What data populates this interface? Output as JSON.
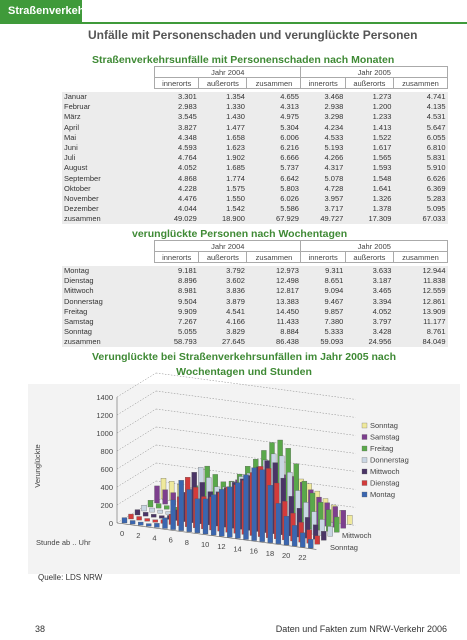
{
  "header": {
    "section": "Straßenverkehr",
    "title": "Unfälle mit Personenschaden und verunglückte Personen"
  },
  "table1": {
    "title": "Straßenverkehrsunfälle mit Personenschaden nach Monaten",
    "year_headers": [
      "Jahr 2004",
      "Jahr 2005"
    ],
    "col_headers": [
      "innerorts",
      "außerorts",
      "zusammen",
      "innerorts",
      "außerorts",
      "zusammen"
    ],
    "rows": [
      [
        "Januar",
        "3.301",
        "1.354",
        "4.655",
        "3.468",
        "1.273",
        "4.741"
      ],
      [
        "Februar",
        "2.983",
        "1.330",
        "4.313",
        "2.938",
        "1.200",
        "4.135"
      ],
      [
        "März",
        "3.545",
        "1.430",
        "4.975",
        "3.298",
        "1.233",
        "4.531"
      ],
      [
        "April",
        "3.827",
        "1.477",
        "5.304",
        "4.234",
        "1.413",
        "5.647"
      ],
      [
        "Mai",
        "4.348",
        "1.658",
        "6.006",
        "4.533",
        "1.522",
        "6.055"
      ],
      [
        "Juni",
        "4.593",
        "1.623",
        "6.216",
        "5.193",
        "1.617",
        "6.810"
      ],
      [
        "Juli",
        "4.764",
        "1.902",
        "6.666",
        "4.266",
        "1.565",
        "5.831"
      ],
      [
        "August",
        "4.052",
        "1.685",
        "5.737",
        "4.317",
        "1.593",
        "5.910"
      ],
      [
        "September",
        "4.868",
        "1.774",
        "6.642",
        "5.078",
        "1.548",
        "6.626"
      ],
      [
        "Oktober",
        "4.228",
        "1.575",
        "5.803",
        "4.728",
        "1.641",
        "6.369"
      ],
      [
        "November",
        "4.476",
        "1.550",
        "6.026",
        "3.957",
        "1.326",
        "5.283"
      ],
      [
        "Dezember",
        "4.044",
        "1.542",
        "5.586",
        "3.717",
        "1.378",
        "5.095"
      ],
      [
        "zusammen",
        "49.029",
        "18.900",
        "67.929",
        "49.727",
        "17.309",
        "67.033"
      ]
    ]
  },
  "table2": {
    "title": "verunglückte Personen nach Wochentagen",
    "year_headers": [
      "Jahr 2004",
      "Jahr 2005"
    ],
    "col_headers": [
      "innerorts",
      "außerorts",
      "zusammen",
      "innerorts",
      "außerorts",
      "zusammen"
    ],
    "rows": [
      [
        "Montag",
        "9.181",
        "3.792",
        "12.973",
        "9.311",
        "3.633",
        "12.944"
      ],
      [
        "Dienstag",
        "8.896",
        "3.602",
        "12.498",
        "8.651",
        "3.187",
        "11.838"
      ],
      [
        "Mittwoch",
        "8.981",
        "3.836",
        "12.817",
        "9.094",
        "3.465",
        "12.559"
      ],
      [
        "Donnerstag",
        "9.504",
        "3.879",
        "13.383",
        "9.467",
        "3.394",
        "12.861"
      ],
      [
        "Freitag",
        "9.909",
        "4.541",
        "14.450",
        "9.857",
        "4.052",
        "13.909"
      ],
      [
        "Samstag",
        "7.267",
        "4.166",
        "11.433",
        "7.380",
        "3.797",
        "11.177"
      ],
      [
        "Sonntag",
        "5.055",
        "3.829",
        "8.884",
        "5.333",
        "3.428",
        "8.761"
      ],
      [
        "zusammen",
        "58.793",
        "27.645",
        "86.438",
        "59.093",
        "24.956",
        "84.049"
      ]
    ]
  },
  "chart_data": {
    "type": "bar3d",
    "title": [
      "Verunglückte bei Straßenverkehrsunfällen im Jahr 2005 nach",
      "Wochentagen und Stunden"
    ],
    "y_label": "Verunglückte",
    "x_label": "Stunde ab .. Uhr",
    "x": [
      0,
      1,
      2,
      3,
      4,
      5,
      6,
      7,
      8,
      9,
      10,
      11,
      12,
      13,
      14,
      15,
      16,
      17,
      18,
      19,
      20,
      21,
      22,
      23
    ],
    "xticks": [
      0,
      2,
      4,
      6,
      8,
      10,
      12,
      14,
      16,
      18,
      20,
      22
    ],
    "ylim": [
      0,
      1400
    ],
    "yticks": [
      0,
      200,
      400,
      600,
      800,
      1000,
      1200,
      1400
    ],
    "series": [
      {
        "name": "Sonntag",
        "color": "#efe99c",
        "values": [
          230,
          210,
          190,
          160,
          120,
          80,
          70,
          80,
          120,
          190,
          270,
          340,
          380,
          400,
          420,
          440,
          450,
          430,
          390,
          320,
          250,
          190,
          140,
          100
        ]
      },
      {
        "name": "Samstag",
        "color": "#7d3f8e",
        "values": [
          190,
          160,
          140,
          110,
          80,
          70,
          90,
          140,
          210,
          290,
          380,
          450,
          490,
          500,
          490,
          500,
          510,
          500,
          450,
          380,
          310,
          260,
          230,
          200
        ]
      },
      {
        "name": "Freitag",
        "color": "#5aa84a",
        "values": [
          75,
          50,
          40,
          35,
          48,
          115,
          310,
          540,
          460,
          390,
          410,
          500,
          600,
          690,
          800,
          900,
          940,
          860,
          700,
          520,
          400,
          310,
          240,
          170
        ]
      },
      {
        "name": "Donnerstag",
        "color": "#c9d6e3",
        "values": [
          65,
          45,
          35,
          30,
          45,
          120,
          330,
          570,
          470,
          380,
          390,
          460,
          530,
          580,
          640,
          750,
          830,
          820,
          650,
          460,
          340,
          250,
          175,
          110
        ]
      },
      {
        "name": "Mittwoch",
        "color": "#4a3566",
        "values": [
          60,
          42,
          32,
          30,
          44,
          118,
          325,
          560,
          460,
          370,
          380,
          440,
          510,
          560,
          610,
          720,
          800,
          790,
          630,
          440,
          320,
          230,
          160,
          100
        ]
      },
      {
        "name": "Dienstag",
        "color": "#d23b3b",
        "values": [
          55,
          40,
          30,
          28,
          42,
          115,
          320,
          550,
          450,
          360,
          370,
          430,
          500,
          540,
          600,
          700,
          780,
          770,
          620,
          430,
          310,
          220,
          150,
          95
        ]
      },
      {
        "name": "Montag",
        "color": "#3a66b0",
        "values": [
          60,
          40,
          35,
          30,
          45,
          120,
          330,
          560,
          470,
          380,
          390,
          450,
          520,
          560,
          620,
          720,
          810,
          800,
          640,
          450,
          320,
          230,
          160,
          100
        ]
      }
    ]
  },
  "source": "Quelle: LDS NRW",
  "footer": {
    "page": "38",
    "text": "Daten und Fakten zum NRW-Verkehr 2006"
  }
}
